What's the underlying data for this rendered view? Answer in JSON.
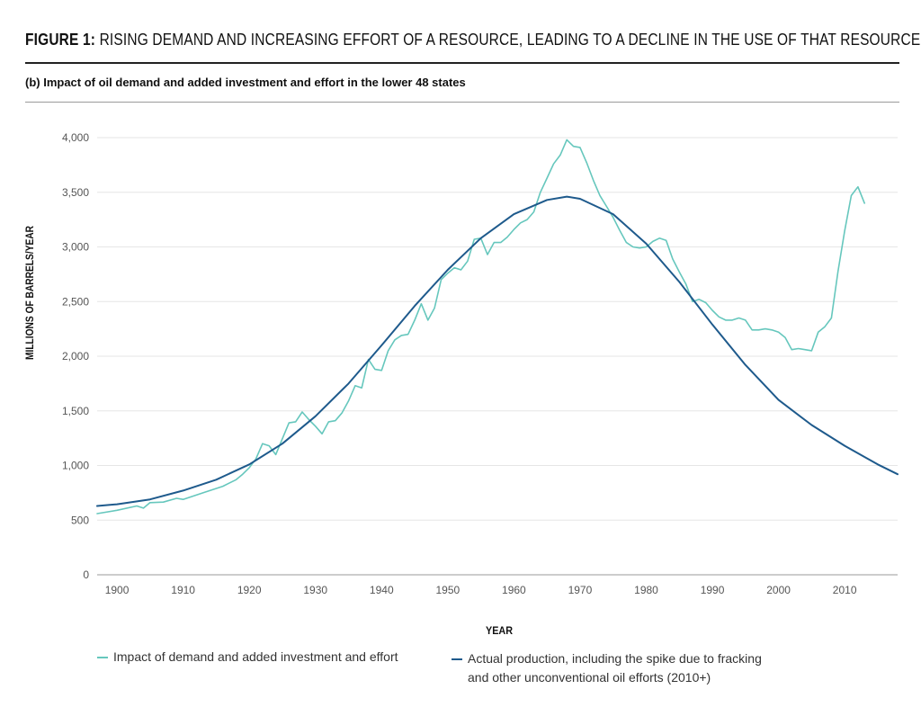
{
  "figure": {
    "label": "FIGURE 1:",
    "title": "RISING DEMAND AND INCREASING EFFORT OF A RESOURCE, LEADING TO A DECLINE IN THE USE OF THAT RESOURCE",
    "subtitle": "(b) Impact of oil demand and added investment and effort in the lower 48 states"
  },
  "legend": {
    "item1": "Impact of demand and added investment and effort",
    "item2_line1": "Actual production, including the spike due to fracking",
    "item2_line2": "and other unconventional oil efforts (2010+)"
  },
  "chart_data": {
    "type": "line",
    "xlabel": "YEAR",
    "ylabel": "MILLIONS OF BARRELS/YEAR",
    "xlim": [
      1897,
      2018
    ],
    "ylim": [
      0,
      4000
    ],
    "x_ticks": [
      1900,
      1910,
      1920,
      1930,
      1940,
      1950,
      1960,
      1970,
      1980,
      1990,
      2000,
      2010
    ],
    "y_ticks": [
      0,
      500,
      1000,
      1500,
      2000,
      2500,
      3000,
      3500,
      4000
    ],
    "y_tick_labels": [
      "0",
      "500",
      "1,000",
      "1,500",
      "2,000",
      "2,500",
      "3,000",
      "3,500",
      "4,000"
    ],
    "grid": "horizontal",
    "series": [
      {
        "name": "Impact of demand and added investment and effort",
        "color": "#66c7bd",
        "points": [
          [
            1897,
            560
          ],
          [
            1900,
            590
          ],
          [
            1903,
            630
          ],
          [
            1904,
            610
          ],
          [
            1905,
            660
          ],
          [
            1907,
            665
          ],
          [
            1909,
            700
          ],
          [
            1910,
            690
          ],
          [
            1913,
            750
          ],
          [
            1916,
            810
          ],
          [
            1918,
            870
          ],
          [
            1919,
            920
          ],
          [
            1920,
            980
          ],
          [
            1921,
            1060
          ],
          [
            1922,
            1200
          ],
          [
            1923,
            1180
          ],
          [
            1924,
            1100
          ],
          [
            1926,
            1390
          ],
          [
            1927,
            1400
          ],
          [
            1928,
            1490
          ],
          [
            1929,
            1420
          ],
          [
            1930,
            1360
          ],
          [
            1931,
            1290
          ],
          [
            1932,
            1400
          ],
          [
            1933,
            1410
          ],
          [
            1934,
            1480
          ],
          [
            1935,
            1590
          ],
          [
            1936,
            1730
          ],
          [
            1937,
            1710
          ],
          [
            1938,
            1970
          ],
          [
            1939,
            1880
          ],
          [
            1940,
            1870
          ],
          [
            1941,
            2050
          ],
          [
            1942,
            2150
          ],
          [
            1943,
            2190
          ],
          [
            1944,
            2200
          ],
          [
            1945,
            2330
          ],
          [
            1946,
            2480
          ],
          [
            1947,
            2330
          ],
          [
            1948,
            2440
          ],
          [
            1949,
            2700
          ],
          [
            1950,
            2760
          ],
          [
            1951,
            2810
          ],
          [
            1952,
            2790
          ],
          [
            1953,
            2870
          ],
          [
            1954,
            3070
          ],
          [
            1955,
            3080
          ],
          [
            1956,
            2930
          ],
          [
            1957,
            3040
          ],
          [
            1958,
            3040
          ],
          [
            1959,
            3090
          ],
          [
            1960,
            3160
          ],
          [
            1961,
            3220
          ],
          [
            1962,
            3250
          ],
          [
            1963,
            3320
          ],
          [
            1964,
            3500
          ],
          [
            1965,
            3630
          ],
          [
            1966,
            3760
          ],
          [
            1967,
            3840
          ],
          [
            1968,
            3980
          ],
          [
            1969,
            3920
          ],
          [
            1970,
            3910
          ],
          [
            1971,
            3770
          ],
          [
            1972,
            3610
          ],
          [
            1973,
            3470
          ],
          [
            1974,
            3370
          ],
          [
            1975,
            3270
          ],
          [
            1976,
            3150
          ],
          [
            1977,
            3040
          ],
          [
            1978,
            3000
          ],
          [
            1979,
            2990
          ],
          [
            1980,
            3000
          ],
          [
            1981,
            3050
          ],
          [
            1982,
            3080
          ],
          [
            1983,
            3060
          ],
          [
            1984,
            2890
          ],
          [
            1985,
            2770
          ],
          [
            1986,
            2660
          ],
          [
            1987,
            2500
          ],
          [
            1988,
            2520
          ],
          [
            1989,
            2490
          ],
          [
            1990,
            2420
          ],
          [
            1991,
            2360
          ],
          [
            1992,
            2330
          ],
          [
            1993,
            2330
          ],
          [
            1994,
            2350
          ],
          [
            1995,
            2330
          ],
          [
            1996,
            2240
          ],
          [
            1997,
            2240
          ],
          [
            1998,
            2250
          ],
          [
            1999,
            2240
          ],
          [
            2000,
            2220
          ],
          [
            2001,
            2170
          ],
          [
            2002,
            2060
          ],
          [
            2003,
            2070
          ],
          [
            2004,
            2060
          ],
          [
            2005,
            2050
          ],
          [
            2006,
            2220
          ],
          [
            2007,
            2270
          ],
          [
            2008,
            2350
          ],
          [
            2009,
            2780
          ],
          [
            2010,
            3150
          ],
          [
            2011,
            3470
          ],
          [
            2012,
            3550
          ],
          [
            2013,
            3400
          ]
        ]
      },
      {
        "name": "Actual production, including the spike due to fracking and other unconventional oil efforts (2010+)",
        "color": "#1e5a8c",
        "points": [
          [
            1897,
            630
          ],
          [
            1900,
            645
          ],
          [
            1905,
            690
          ],
          [
            1910,
            770
          ],
          [
            1915,
            870
          ],
          [
            1920,
            1010
          ],
          [
            1925,
            1200
          ],
          [
            1930,
            1450
          ],
          [
            1935,
            1750
          ],
          [
            1940,
            2100
          ],
          [
            1945,
            2460
          ],
          [
            1950,
            2790
          ],
          [
            1955,
            3080
          ],
          [
            1960,
            3300
          ],
          [
            1965,
            3430
          ],
          [
            1968,
            3460
          ],
          [
            1970,
            3440
          ],
          [
            1975,
            3300
          ],
          [
            1980,
            3030
          ],
          [
            1985,
            2680
          ],
          [
            1990,
            2290
          ],
          [
            1995,
            1920
          ],
          [
            2000,
            1600
          ],
          [
            2005,
            1370
          ],
          [
            2010,
            1180
          ],
          [
            2015,
            1010
          ],
          [
            2018,
            920
          ]
        ]
      }
    ]
  }
}
